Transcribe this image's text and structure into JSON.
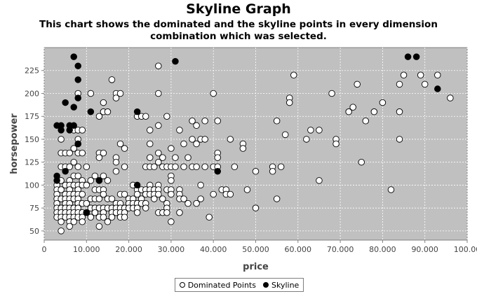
{
  "chart_data": {
    "type": "scatter",
    "title": "Skyline Graph",
    "subtitle": "This chart shows the dominated and the skyline points in every dimension combination which was selected.",
    "xlabel": "price",
    "ylabel": "horsepower",
    "xlim": [
      0,
      100000
    ],
    "ylim": [
      40,
      250
    ],
    "xticks": [
      0,
      10000,
      20000,
      30000,
      40000,
      50000,
      60000,
      70000,
      80000,
      90000,
      100000
    ],
    "xtick_labels": [
      "0",
      "10.000",
      "20.000",
      "30.000",
      "40.000",
      "50.000",
      "60.000",
      "70.000",
      "80.000",
      "90.000",
      "100.00"
    ],
    "yticks": [
      50,
      75,
      100,
      125,
      150,
      175,
      200,
      225
    ],
    "ytick_labels": [
      "50",
      "75",
      "100",
      "125",
      "150",
      "175",
      "200",
      "225"
    ],
    "grid": true,
    "legend_position": "bottom",
    "plot_background": "#c0c0c0",
    "series": [
      {
        "name": "Dominated Points",
        "marker": "hollow-circle",
        "color": "#ffffff",
        "points": [
          [
            3000,
            100
          ],
          [
            3000,
            95
          ],
          [
            3000,
            90
          ],
          [
            3000,
            85
          ],
          [
            3000,
            80
          ],
          [
            3000,
            75
          ],
          [
            3000,
            70
          ],
          [
            3000,
            65
          ],
          [
            4000,
            150
          ],
          [
            4000,
            135
          ],
          [
            4000,
            120
          ],
          [
            4000,
            105
          ],
          [
            4000,
            95
          ],
          [
            4000,
            85
          ],
          [
            4000,
            75
          ],
          [
            4000,
            70
          ],
          [
            4000,
            65
          ],
          [
            4000,
            60
          ],
          [
            4000,
            50
          ],
          [
            5000,
            135
          ],
          [
            5000,
            120
          ],
          [
            5000,
            100
          ],
          [
            5000,
            90
          ],
          [
            5000,
            85
          ],
          [
            5000,
            80
          ],
          [
            5000,
            75
          ],
          [
            5000,
            70
          ],
          [
            5000,
            65
          ],
          [
            6000,
            135
          ],
          [
            6000,
            120
          ],
          [
            6000,
            105
          ],
          [
            6000,
            100
          ],
          [
            6000,
            95
          ],
          [
            6000,
            90
          ],
          [
            6000,
            85
          ],
          [
            6000,
            80
          ],
          [
            6000,
            75
          ],
          [
            6000,
            70
          ],
          [
            6000,
            65
          ],
          [
            6000,
            60
          ],
          [
            6000,
            55
          ],
          [
            7000,
            160
          ],
          [
            7000,
            140
          ],
          [
            7000,
            125
          ],
          [
            7000,
            110
          ],
          [
            7000,
            100
          ],
          [
            7000,
            90
          ],
          [
            7000,
            85
          ],
          [
            7000,
            75
          ],
          [
            7000,
            70
          ],
          [
            7000,
            65
          ],
          [
            7000,
            60
          ],
          [
            8000,
            200
          ],
          [
            8000,
            160
          ],
          [
            8000,
            150
          ],
          [
            8000,
            145
          ],
          [
            8000,
            135
          ],
          [
            8000,
            120
          ],
          [
            8000,
            110
          ],
          [
            8000,
            100
          ],
          [
            8000,
            95
          ],
          [
            8000,
            90
          ],
          [
            8000,
            85
          ],
          [
            8000,
            80
          ],
          [
            8000,
            75
          ],
          [
            8000,
            70
          ],
          [
            8000,
            65
          ],
          [
            9000,
            160
          ],
          [
            9000,
            135
          ],
          [
            9000,
            105
          ],
          [
            9000,
            100
          ],
          [
            9000,
            90
          ],
          [
            9000,
            80
          ],
          [
            9000,
            70
          ],
          [
            9000,
            65
          ],
          [
            9000,
            60
          ],
          [
            10000,
            120
          ],
          [
            10000,
            100
          ],
          [
            10000,
            80
          ],
          [
            10000,
            70
          ],
          [
            11000,
            200
          ],
          [
            11000,
            105
          ],
          [
            11000,
            85
          ],
          [
            11000,
            75
          ],
          [
            11000,
            65
          ],
          [
            12000,
            110
          ],
          [
            12000,
            95
          ],
          [
            12000,
            85
          ],
          [
            12000,
            75
          ],
          [
            12000,
            70
          ],
          [
            13000,
            175
          ],
          [
            13000,
            135
          ],
          [
            13000,
            130
          ],
          [
            13000,
            105
          ],
          [
            13000,
            95
          ],
          [
            13000,
            85
          ],
          [
            13000,
            75
          ],
          [
            13000,
            65
          ],
          [
            13000,
            55
          ],
          [
            14000,
            190
          ],
          [
            14000,
            180
          ],
          [
            14000,
            135
          ],
          [
            14000,
            110
          ],
          [
            14000,
            95
          ],
          [
            14000,
            90
          ],
          [
            14000,
            75
          ],
          [
            14000,
            70
          ],
          [
            14000,
            65
          ],
          [
            15000,
            180
          ],
          [
            15000,
            105
          ],
          [
            15000,
            85
          ],
          [
            15000,
            75
          ],
          [
            15000,
            60
          ],
          [
            16000,
            215
          ],
          [
            16000,
            85
          ],
          [
            16000,
            75
          ],
          [
            16000,
            70
          ],
          [
            16000,
            65
          ],
          [
            17000,
            200
          ],
          [
            17000,
            195
          ],
          [
            17000,
            130
          ],
          [
            17000,
            125
          ],
          [
            17000,
            115
          ],
          [
            17000,
            80
          ],
          [
            17000,
            75
          ],
          [
            17000,
            70
          ],
          [
            18000,
            200
          ],
          [
            18000,
            145
          ],
          [
            18000,
            90
          ],
          [
            18000,
            80
          ],
          [
            18000,
            75
          ],
          [
            18000,
            70
          ],
          [
            18000,
            65
          ],
          [
            19000,
            140
          ],
          [
            19000,
            120
          ],
          [
            19000,
            90
          ],
          [
            19000,
            75
          ],
          [
            19000,
            70
          ],
          [
            19000,
            65
          ],
          [
            20000,
            85
          ],
          [
            20000,
            80
          ],
          [
            20000,
            75
          ],
          [
            21000,
            100
          ],
          [
            21000,
            85
          ],
          [
            21000,
            80
          ],
          [
            21000,
            75
          ],
          [
            22000,
            175
          ],
          [
            22000,
            95
          ],
          [
            22000,
            90
          ],
          [
            22000,
            80
          ],
          [
            22000,
            75
          ],
          [
            22000,
            70
          ],
          [
            23000,
            175
          ],
          [
            23000,
            95
          ],
          [
            23000,
            85
          ],
          [
            23000,
            80
          ],
          [
            24000,
            175
          ],
          [
            24000,
            120
          ],
          [
            24000,
            95
          ],
          [
            24000,
            90
          ],
          [
            24000,
            80
          ],
          [
            24000,
            75
          ],
          [
            25000,
            160
          ],
          [
            25000,
            145
          ],
          [
            25000,
            130
          ],
          [
            25000,
            120
          ],
          [
            25000,
            100
          ],
          [
            25000,
            95
          ],
          [
            25000,
            90
          ],
          [
            26000,
            120
          ],
          [
            26000,
            95
          ],
          [
            26000,
            90
          ],
          [
            26000,
            85
          ],
          [
            27000,
            230
          ],
          [
            27000,
            200
          ],
          [
            27000,
            165
          ],
          [
            27000,
            135
          ],
          [
            27000,
            125
          ],
          [
            27000,
            100
          ],
          [
            27000,
            95
          ],
          [
            27000,
            90
          ],
          [
            27000,
            70
          ],
          [
            28000,
            130
          ],
          [
            28000,
            120
          ],
          [
            28000,
            85
          ],
          [
            28000,
            70
          ],
          [
            29000,
            175
          ],
          [
            29000,
            120
          ],
          [
            29000,
            95
          ],
          [
            29000,
            80
          ],
          [
            29000,
            75
          ],
          [
            29000,
            70
          ],
          [
            30000,
            140
          ],
          [
            30000,
            120
          ],
          [
            30000,
            110
          ],
          [
            30000,
            105
          ],
          [
            30000,
            95
          ],
          [
            30000,
            90
          ],
          [
            30000,
            60
          ],
          [
            31000,
            130
          ],
          [
            31000,
            120
          ],
          [
            32000,
            160
          ],
          [
            32000,
            95
          ],
          [
            32000,
            90
          ],
          [
            32000,
            85
          ],
          [
            32000,
            70
          ],
          [
            33000,
            145
          ],
          [
            33000,
            120
          ],
          [
            33000,
            85
          ],
          [
            34000,
            130
          ],
          [
            34000,
            80
          ],
          [
            35000,
            170
          ],
          [
            35000,
            150
          ],
          [
            35000,
            120
          ],
          [
            36000,
            165
          ],
          [
            36000,
            145
          ],
          [
            36000,
            120
          ],
          [
            36000,
            80
          ],
          [
            37000,
            150
          ],
          [
            37000,
            100
          ],
          [
            37000,
            85
          ],
          [
            38000,
            170
          ],
          [
            38000,
            150
          ],
          [
            38000,
            120
          ],
          [
            39000,
            65
          ],
          [
            40000,
            200
          ],
          [
            40000,
            120
          ],
          [
            40000,
            90
          ],
          [
            41000,
            170
          ],
          [
            41000,
            135
          ],
          [
            41000,
            130
          ],
          [
            41000,
            120
          ],
          [
            42000,
            95
          ],
          [
            43000,
            95
          ],
          [
            43000,
            90
          ],
          [
            44000,
            150
          ],
          [
            44000,
            90
          ],
          [
            45000,
            120
          ],
          [
            47000,
            145
          ],
          [
            47000,
            140
          ],
          [
            48000,
            95
          ],
          [
            50000,
            115
          ],
          [
            50000,
            75
          ],
          [
            54000,
            120
          ],
          [
            54000,
            115
          ],
          [
            55000,
            170
          ],
          [
            55000,
            85
          ],
          [
            56000,
            120
          ],
          [
            57000,
            155
          ],
          [
            58000,
            195
          ],
          [
            58000,
            190
          ],
          [
            59000,
            220
          ],
          [
            62000,
            150
          ],
          [
            63000,
            160
          ],
          [
            65000,
            160
          ],
          [
            65000,
            105
          ],
          [
            68000,
            200
          ],
          [
            69000,
            150
          ],
          [
            69000,
            145
          ],
          [
            72000,
            180
          ],
          [
            73000,
            185
          ],
          [
            74000,
            210
          ],
          [
            75000,
            125
          ],
          [
            76000,
            170
          ],
          [
            78000,
            180
          ],
          [
            80000,
            190
          ],
          [
            82000,
            95
          ],
          [
            84000,
            210
          ],
          [
            84000,
            180
          ],
          [
            84000,
            150
          ],
          [
            85000,
            220
          ],
          [
            89000,
            220
          ],
          [
            90000,
            210
          ],
          [
            93000,
            220
          ],
          [
            96000,
            195
          ]
        ]
      },
      {
        "name": "Skyline",
        "marker": "filled-circle",
        "color": "#000000",
        "points": [
          [
            7000,
            240
          ],
          [
            8000,
            230
          ],
          [
            8000,
            215
          ],
          [
            8000,
            195
          ],
          [
            7000,
            185
          ],
          [
            5000,
            190
          ],
          [
            11000,
            180
          ],
          [
            3000,
            165
          ],
          [
            4000,
            165
          ],
          [
            4000,
            160
          ],
          [
            6000,
            165
          ],
          [
            6000,
            160
          ],
          [
            7000,
            165
          ],
          [
            3000,
            110
          ],
          [
            3000,
            105
          ],
          [
            5000,
            115
          ],
          [
            8000,
            145
          ],
          [
            10000,
            70
          ],
          [
            13000,
            105
          ],
          [
            22000,
            180
          ],
          [
            31000,
            235
          ],
          [
            41000,
            115
          ],
          [
            22000,
            100
          ],
          [
            86000,
            240
          ],
          [
            88000,
            240
          ],
          [
            93000,
            205
          ]
        ]
      }
    ]
  }
}
